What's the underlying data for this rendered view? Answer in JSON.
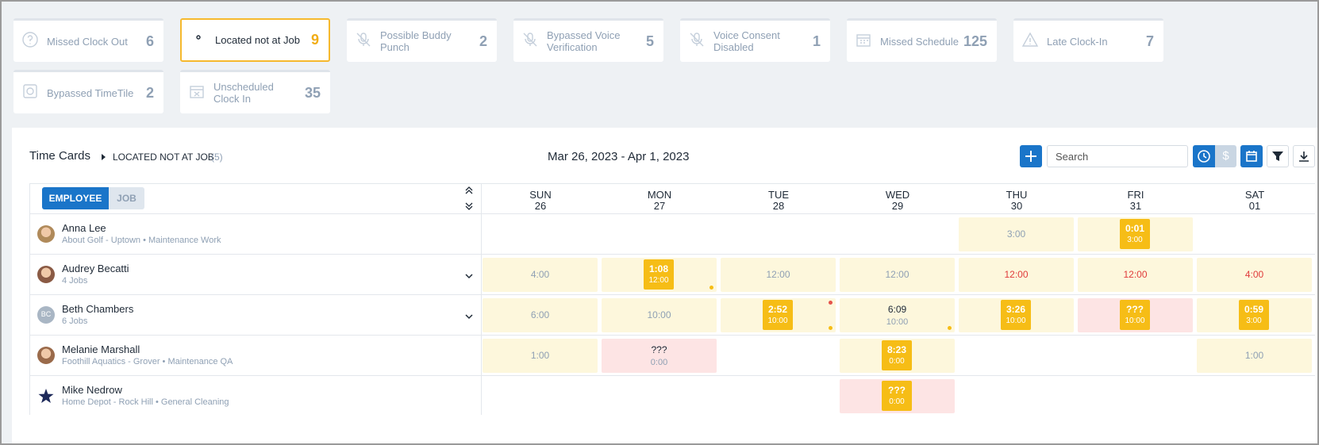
{
  "filters": {
    "active": 1,
    "items": [
      {
        "label": "Missed Clock Out",
        "count": 6,
        "icon": "question"
      },
      {
        "label": "Located not at Job",
        "count": 9,
        "icon": "pin"
      },
      {
        "label": "Possible Buddy Punch",
        "count": 2,
        "icon": "mic-off"
      },
      {
        "label": "Bypassed Voice Verification",
        "count": 5,
        "icon": "mic-off"
      },
      {
        "label": "Voice Consent Disabled",
        "count": 1,
        "icon": "mic-off"
      },
      {
        "label": "Missed Schedule",
        "count": 125,
        "icon": "calendar"
      },
      {
        "label": "Late Clock-In",
        "count": 7,
        "icon": "warning"
      },
      {
        "label": "Bypassed TimeTile",
        "count": 2,
        "icon": "tile"
      },
      {
        "label": "Unscheduled Clock In",
        "count": 35,
        "icon": "calendar-x"
      }
    ]
  },
  "header": {
    "title": "Time Cards",
    "filter": "LOCATED NOT AT JOB",
    "filter_count": "(5)",
    "date_range": "Mar 26, 2023 - Apr 1, 2023",
    "search_placeholder": "Search",
    "currency_symbol": "$"
  },
  "toggle": {
    "options": [
      "EMPLOYEE",
      "JOB"
    ],
    "active": 0
  },
  "days": [
    {
      "dow": "SUN",
      "date": "26"
    },
    {
      "dow": "MON",
      "date": "27"
    },
    {
      "dow": "TUE",
      "date": "28"
    },
    {
      "dow": "WED",
      "date": "29"
    },
    {
      "dow": "THU",
      "date": "30"
    },
    {
      "dow": "FRI",
      "date": "31"
    },
    {
      "dow": "SAT",
      "date": "01"
    }
  ],
  "employees": [
    {
      "name": "Anna Lee",
      "subtitle": "About Golf - Uptown • Maintenance Work",
      "avatar": "photo",
      "avatar_color": "#b08a5a",
      "expandable": false,
      "cells": [
        null,
        null,
        null,
        null,
        {
          "scheduled": "3:00"
        },
        {
          "actual": "0:01",
          "scheduled": "3:00",
          "badge": true
        },
        null
      ]
    },
    {
      "name": "Audrey Becatti",
      "subtitle": "4 Jobs",
      "avatar": "photo",
      "avatar_color": "#8a5a44",
      "expandable": true,
      "cells": [
        {
          "scheduled": "4:00"
        },
        {
          "actual": "1:08",
          "scheduled": "12:00",
          "badge": true,
          "dot_bottom": "yellow"
        },
        {
          "scheduled": "12:00"
        },
        {
          "scheduled": "12:00"
        },
        {
          "scheduled": "12:00",
          "late": true
        },
        {
          "scheduled": "12:00",
          "late": true
        },
        {
          "scheduled": "4:00",
          "late": true
        }
      ]
    },
    {
      "name": "Beth Chambers",
      "subtitle": "6 Jobs",
      "avatar": "initials",
      "initials": "BC",
      "expandable": true,
      "cells": [
        {
          "scheduled": "6:00"
        },
        {
          "scheduled": "10:00"
        },
        {
          "actual": "2:52",
          "scheduled": "10:00",
          "badge": true,
          "dot_top": "red",
          "dot_bottom": "yellow"
        },
        {
          "actual": "6:09",
          "scheduled": "10:00",
          "dot_bottom": "yellow"
        },
        {
          "actual": "3:26",
          "scheduled": "10:00",
          "badge": true
        },
        {
          "actual": "???",
          "scheduled": "10:00",
          "badge": true,
          "bg": "pink"
        },
        {
          "actual": "0:59",
          "scheduled": "3:00",
          "badge": true
        }
      ]
    },
    {
      "name": "Melanie Marshall",
      "subtitle": "Foothill Aquatics - Grover • Maintenance QA",
      "avatar": "photo",
      "avatar_color": "#9a6a4a",
      "expandable": false,
      "cells": [
        {
          "scheduled": "1:00"
        },
        {
          "actual": "???",
          "scheduled": "0:00",
          "bg": "pink"
        },
        null,
        {
          "actual": "8:23",
          "scheduled": "0:00",
          "badge": true
        },
        null,
        null,
        {
          "scheduled": "1:00"
        }
      ]
    },
    {
      "name": "Mike Nedrow",
      "subtitle": "Home Depot - Rock Hill • General Cleaning",
      "avatar": "star",
      "expandable": false,
      "cells": [
        null,
        null,
        null,
        {
          "actual": "???",
          "scheduled": "0:00",
          "badge": true,
          "bg": "pink"
        },
        null,
        null,
        null
      ]
    }
  ]
}
